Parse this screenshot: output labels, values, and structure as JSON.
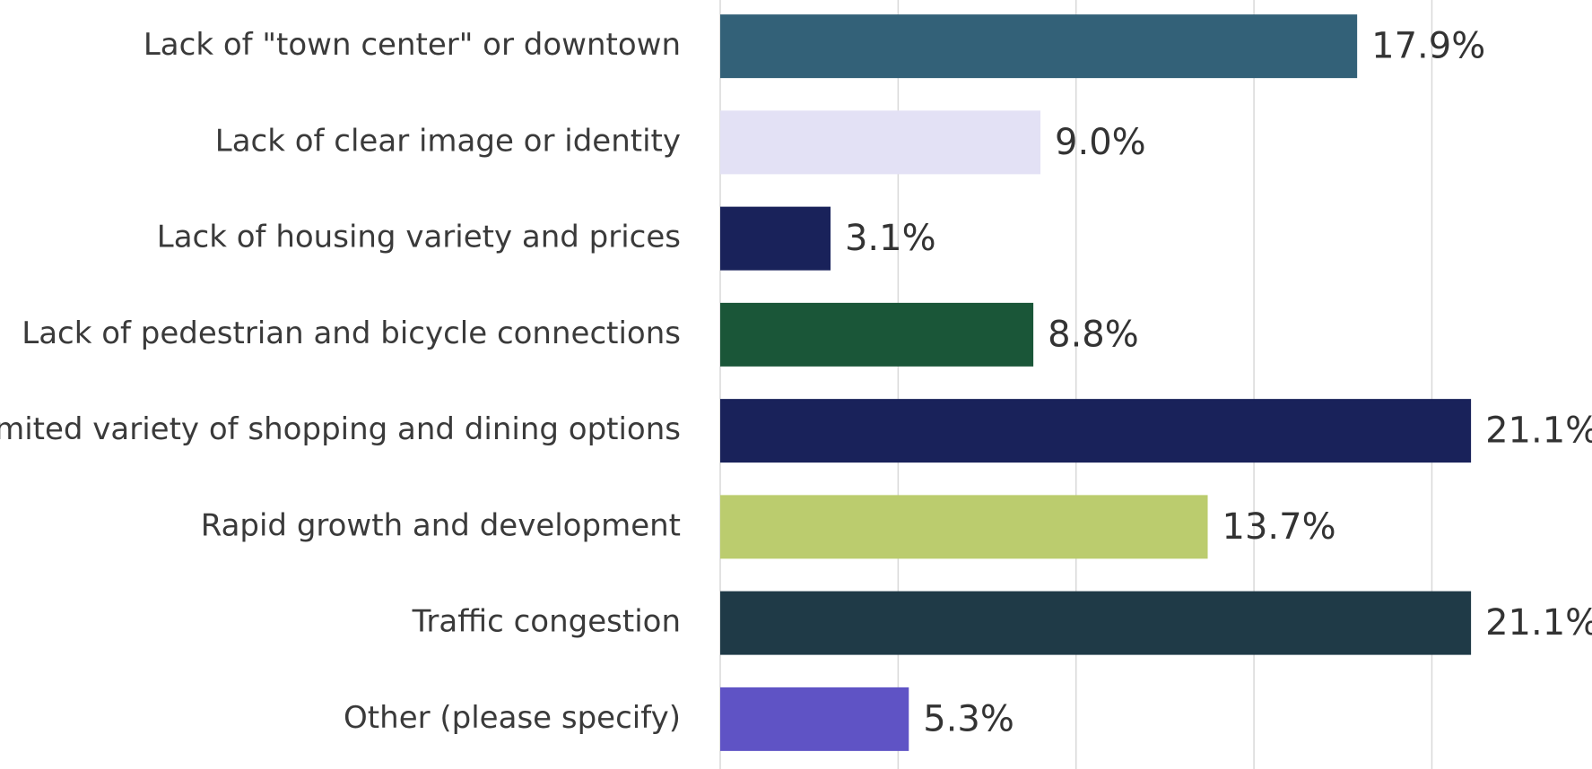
{
  "chart_data": {
    "type": "hbar",
    "categories": [
      "Lack of \"town center\" or downtown",
      "Lack of clear image or identity",
      "Lack of housing variety and prices",
      "Lack of pedestrian and bicycle connections",
      "Limited variety of shopping and dining options",
      "Rapid growth and development",
      "Traffic congestion",
      "Other (please specify)"
    ],
    "values": [
      17.9,
      9.0,
      3.1,
      8.8,
      21.1,
      13.7,
      21.1,
      5.3
    ],
    "value_labels": [
      "17.9%",
      "9.0%",
      "3.1%",
      "8.8%",
      "21.1%",
      "13.7%",
      "21.1%",
      "5.3%"
    ],
    "colors": [
      "#336178",
      "#e3e1f5",
      "#19225a",
      "#1a5638",
      "#19225a",
      "#bbcc6e",
      "#1f3a47",
      "#5f53c5"
    ],
    "xlim": [
      0,
      24.5
    ],
    "xticks": [
      0,
      5,
      10,
      15,
      20
    ],
    "grid": true
  }
}
